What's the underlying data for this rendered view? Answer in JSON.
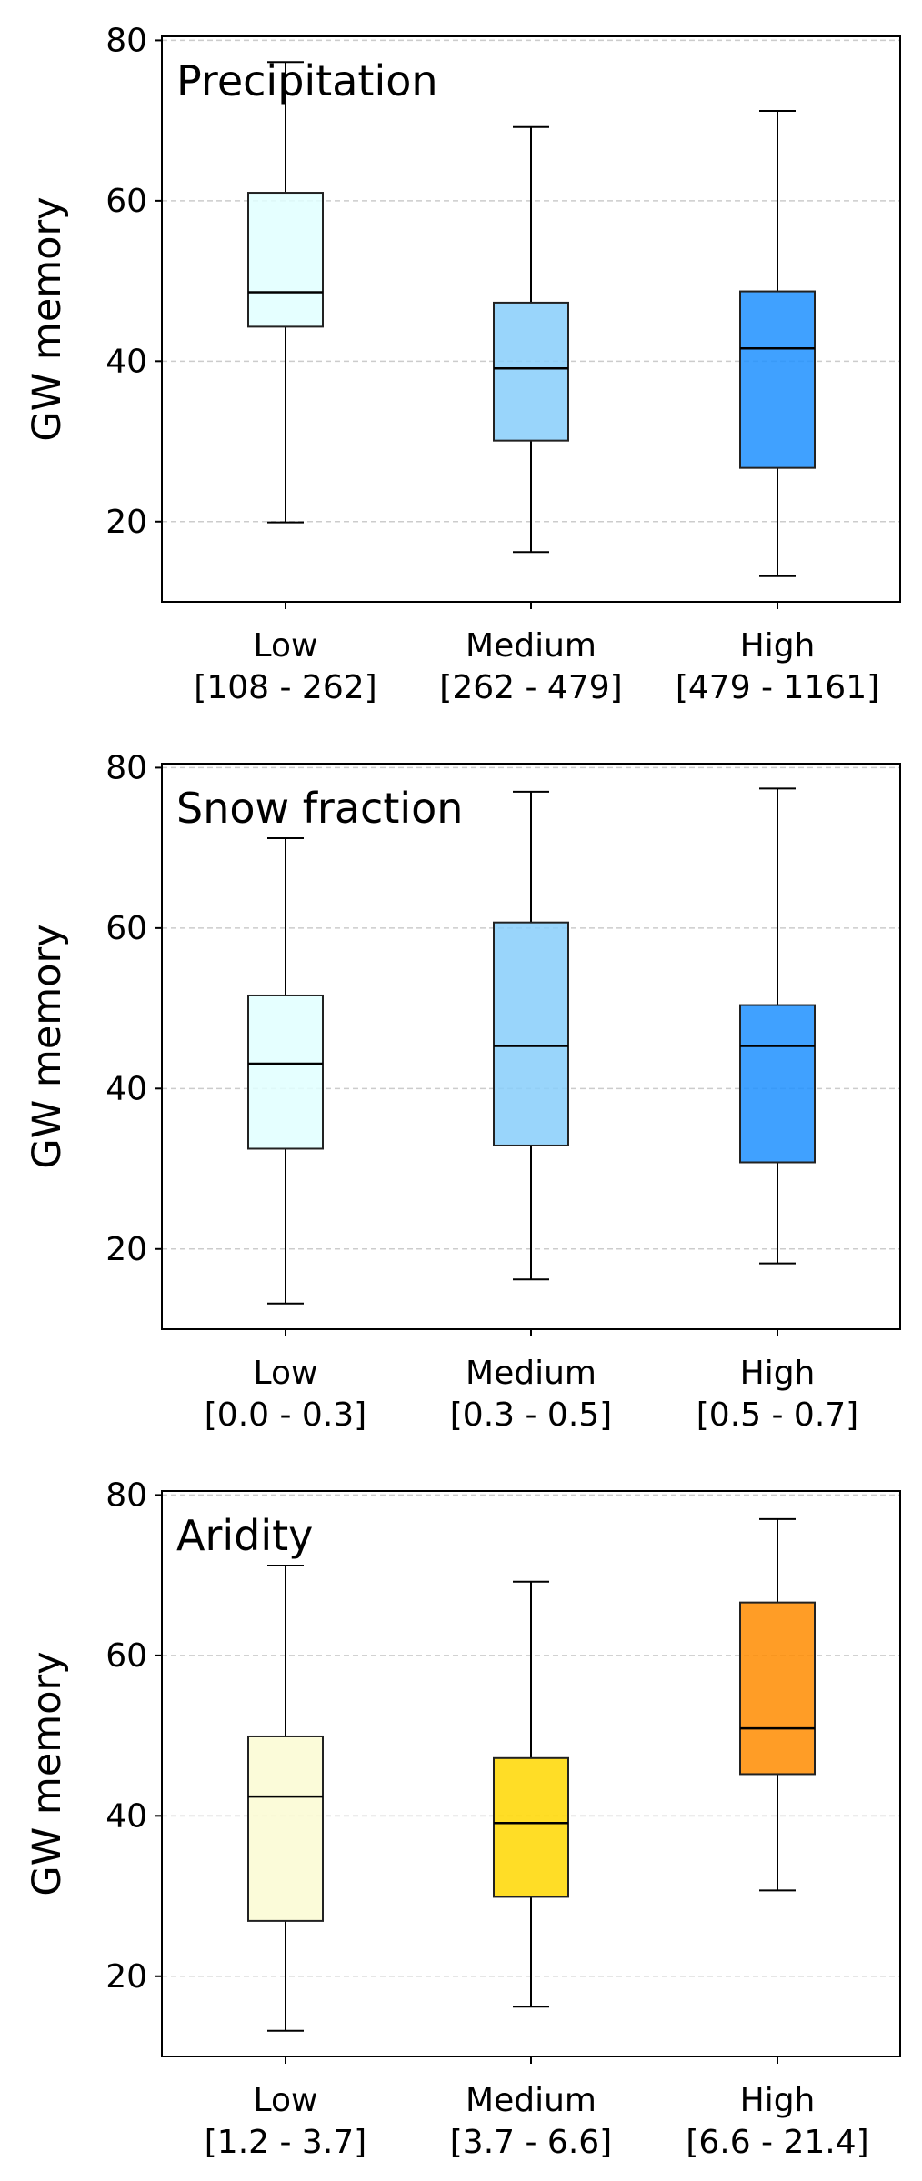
{
  "chart_data": [
    {
      "type": "box",
      "title": "Precipitation",
      "ylabel": "GW memory",
      "ylim": [
        10,
        80.5
      ],
      "yticks": [
        20,
        40,
        60,
        80
      ],
      "grid": "horizontal-dashed",
      "categories": [
        "Low",
        "Medium",
        "High"
      ],
      "ranges": [
        "[108 - 262]",
        "[262 - 479]",
        "[479 - 1161]"
      ],
      "colors": [
        "#e0ffff",
        "#87cefa",
        "#1e90ff"
      ],
      "boxes": [
        {
          "whislo": 19.9,
          "q1": 44.3,
          "med": 48.6,
          "q3": 61.0,
          "whishi": 77.3
        },
        {
          "whislo": 16.2,
          "q1": 30.1,
          "med": 39.1,
          "q3": 47.3,
          "whishi": 69.2
        },
        {
          "whislo": 13.2,
          "q1": 26.7,
          "med": 41.6,
          "q3": 48.7,
          "whishi": 71.2
        }
      ]
    },
    {
      "type": "box",
      "title": "Snow fraction",
      "ylabel": "GW memory",
      "ylim": [
        10,
        80.5
      ],
      "yticks": [
        20,
        40,
        60,
        80
      ],
      "grid": "horizontal-dashed",
      "categories": [
        "Low",
        "Medium",
        "High"
      ],
      "ranges": [
        "[0.0 - 0.3]",
        "[0.3 - 0.5]",
        "[0.5 - 0.7]"
      ],
      "colors": [
        "#e0ffff",
        "#87cefa",
        "#1e90ff"
      ],
      "boxes": [
        {
          "whislo": 13.2,
          "q1": 32.5,
          "med": 43.1,
          "q3": 51.6,
          "whishi": 71.2
        },
        {
          "whislo": 16.2,
          "q1": 32.9,
          "med": 45.3,
          "q3": 60.7,
          "whishi": 77.0
        },
        {
          "whislo": 18.2,
          "q1": 30.8,
          "med": 45.3,
          "q3": 50.4,
          "whishi": 77.4
        }
      ]
    },
    {
      "type": "box",
      "title": "Aridity",
      "ylabel": "GW memory",
      "ylim": [
        10,
        80.5
      ],
      "yticks": [
        20,
        40,
        60,
        80
      ],
      "grid": "horizontal-dashed",
      "categories": [
        "Low",
        "Medium",
        "High"
      ],
      "ranges": [
        "[1.2 - 3.7]",
        "[3.7 - 6.6]",
        "[6.6 - 21.4]"
      ],
      "colors": [
        "#fafad2",
        "#ffd700",
        "#ff8c00"
      ],
      "boxes": [
        {
          "whislo": 13.2,
          "q1": 26.9,
          "med": 42.4,
          "q3": 49.9,
          "whishi": 71.2
        },
        {
          "whislo": 16.2,
          "q1": 29.9,
          "med": 39.1,
          "q3": 47.2,
          "whishi": 69.2
        },
        {
          "whislo": 30.7,
          "q1": 45.2,
          "med": 50.9,
          "q3": 66.6,
          "whishi": 77.0
        }
      ]
    }
  ]
}
